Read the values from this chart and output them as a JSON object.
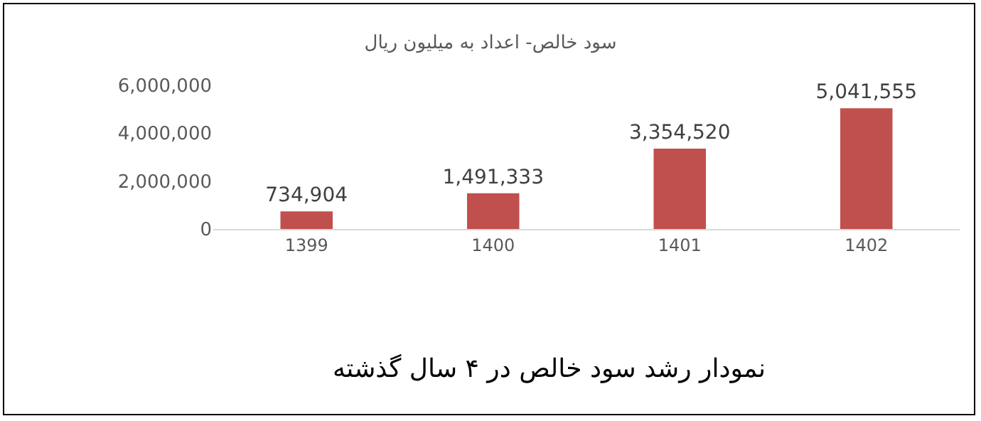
{
  "chart_data": {
    "type": "bar",
    "title": "سود خالص- اعداد به میلیون ریال",
    "categories": [
      "1399",
      "1400",
      "1401",
      "1402"
    ],
    "values": [
      734904,
      1491333,
      3354520,
      5041555
    ],
    "color": "#c0504d",
    "ylim": [
      0,
      6000000
    ],
    "yticks": [
      {
        "value": 0,
        "label": "0"
      },
      {
        "value": 2000000,
        "label": "2,000,000"
      },
      {
        "value": 4000000,
        "label": "4,000,000"
      },
      {
        "value": 6000000,
        "label": "6,000,000"
      }
    ],
    "value_labels": [
      "734,904",
      "1,491,333",
      "3,354,520",
      "5,041,555"
    ],
    "grid": false,
    "legend": false,
    "annotations": [
      "نمودار رشد سود خالص در ۴ سال گذشته"
    ]
  }
}
